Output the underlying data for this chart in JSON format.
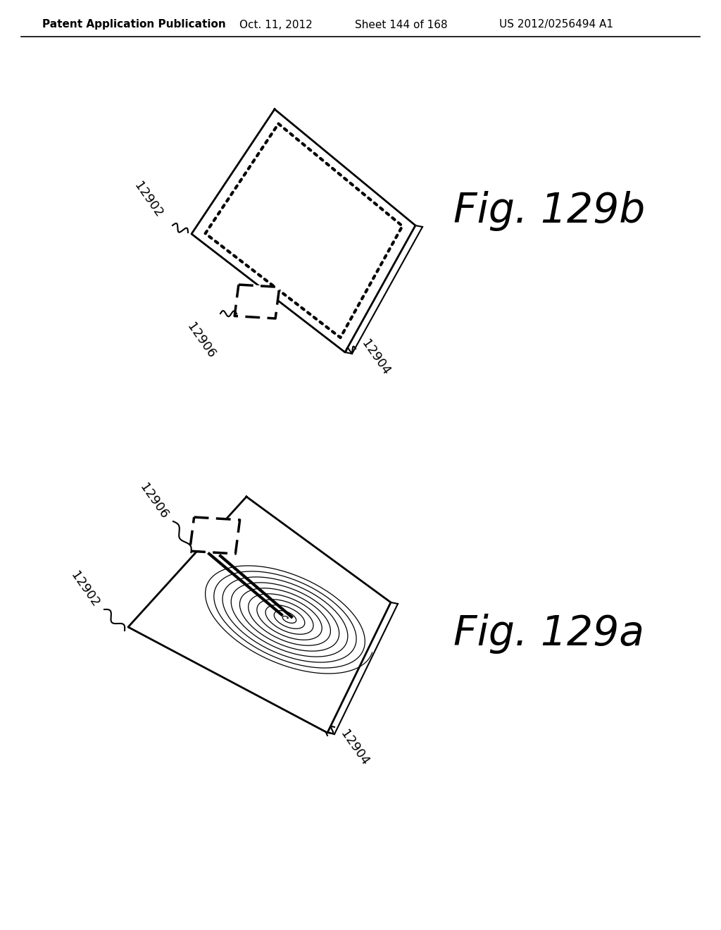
{
  "bg_color": "#ffffff",
  "header_text": "Patent Application Publication",
  "header_date": "Oct. 11, 2012",
  "header_sheet": "Sheet 144 of 168",
  "header_patent": "US 2012/0256494 A1",
  "fig_b_label": "Fig. 129b",
  "fig_a_label": "Fig. 129a",
  "label_12902": "12902",
  "label_12904": "12904",
  "label_12906": "12906",
  "line_color": "#000000",
  "text_color": "#000000",
  "fig_label_fontsize": 42,
  "annotation_fontsize": 13
}
